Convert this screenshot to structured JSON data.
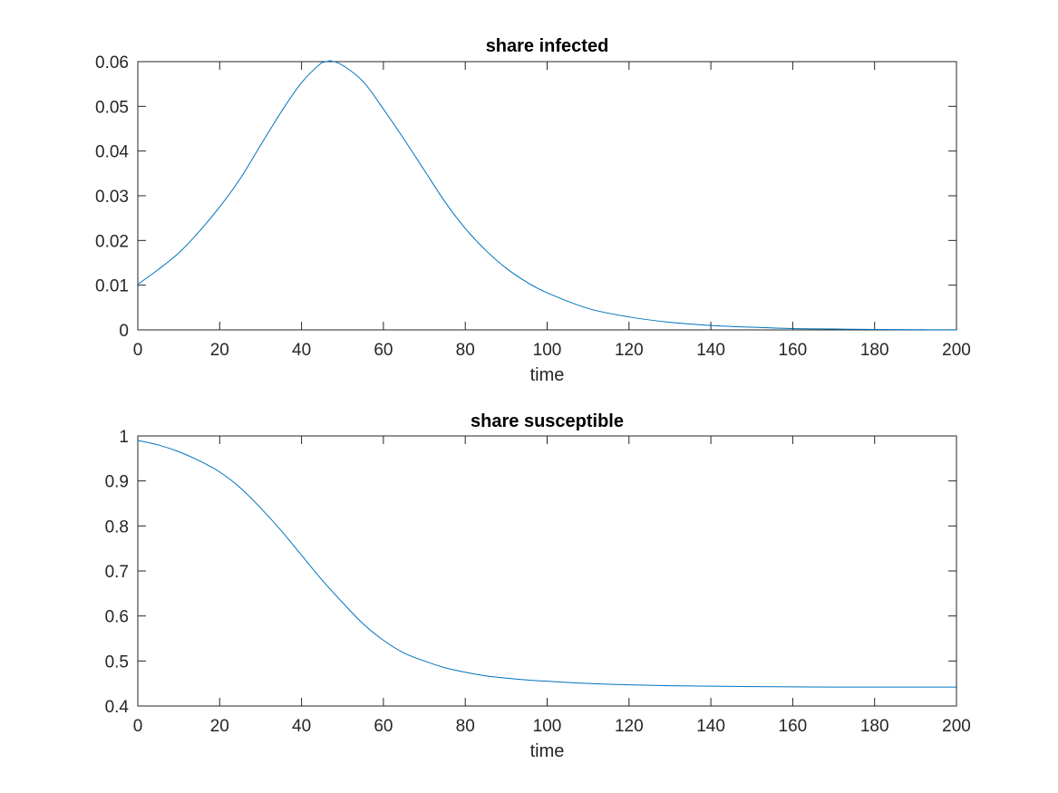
{
  "chart_data": [
    {
      "type": "line",
      "title": "share infected",
      "xlabel": "time",
      "ylabel": "",
      "xlim": [
        0,
        200
      ],
      "ylim": [
        0,
        0.06
      ],
      "grid": false,
      "xticks": [
        0,
        20,
        40,
        60,
        80,
        100,
        120,
        140,
        160,
        180,
        200
      ],
      "xtick_labels": [
        "0",
        "20",
        "40",
        "60",
        "80",
        "100",
        "120",
        "140",
        "160",
        "180",
        "200"
      ],
      "yticks": [
        0,
        0.01,
        0.02,
        0.03,
        0.04,
        0.05,
        0.06
      ],
      "ytick_labels": [
        "0",
        "0.01",
        "0.02",
        "0.03",
        "0.04",
        "0.05",
        "0.06"
      ],
      "line_color": "#0072BD",
      "series": [
        {
          "x": [
            0,
            5,
            10,
            15,
            20,
            25,
            30,
            35,
            40,
            45,
            47,
            50,
            55,
            60,
            65,
            70,
            75,
            80,
            85,
            90,
            95,
            100,
            110,
            120,
            130,
            140,
            150,
            160,
            170,
            180,
            190,
            200
          ],
          "y": [
            0.0102,
            0.0135,
            0.0172,
            0.022,
            0.0275,
            0.0338,
            0.0413,
            0.0487,
            0.0553,
            0.0598,
            0.0602,
            0.0592,
            0.0556,
            0.0494,
            0.0427,
            0.0357,
            0.0287,
            0.0227,
            0.0178,
            0.0138,
            0.0107,
            0.0083,
            0.0048,
            0.0029,
            0.0017,
            0.001,
            0.0006,
            0.0003,
            0.0002,
            0.0001,
            5e-05,
            2e-05
          ]
        }
      ]
    },
    {
      "type": "line",
      "title": "share susceptible",
      "xlabel": "time",
      "ylabel": "",
      "xlim": [
        0,
        200
      ],
      "ylim": [
        0.4,
        1
      ],
      "grid": false,
      "xticks": [
        0,
        20,
        40,
        60,
        80,
        100,
        120,
        140,
        160,
        180,
        200
      ],
      "xtick_labels": [
        "0",
        "20",
        "40",
        "60",
        "80",
        "100",
        "120",
        "140",
        "160",
        "180",
        "200"
      ],
      "yticks": [
        0.4,
        0.5,
        0.6,
        0.7,
        0.8,
        0.9,
        1
      ],
      "ytick_labels": [
        "0.4",
        "0.5",
        "0.6",
        "0.7",
        "0.8",
        "0.9",
        "1"
      ],
      "line_color": "#0072BD",
      "series": [
        {
          "x": [
            0,
            5,
            10,
            15,
            20,
            25,
            30,
            35,
            40,
            45,
            50,
            55,
            60,
            65,
            70,
            75,
            80,
            85,
            90,
            95,
            100,
            110,
            120,
            130,
            140,
            150,
            160,
            170,
            180,
            190,
            200
          ],
          "y": [
            0.99,
            0.98,
            0.965,
            0.945,
            0.92,
            0.885,
            0.84,
            0.79,
            0.735,
            0.68,
            0.63,
            0.583,
            0.546,
            0.518,
            0.5,
            0.485,
            0.475,
            0.467,
            0.462,
            0.458,
            0.455,
            0.45,
            0.447,
            0.445,
            0.444,
            0.443,
            0.4425,
            0.442,
            0.442,
            0.442,
            0.442
          ]
        }
      ]
    }
  ]
}
